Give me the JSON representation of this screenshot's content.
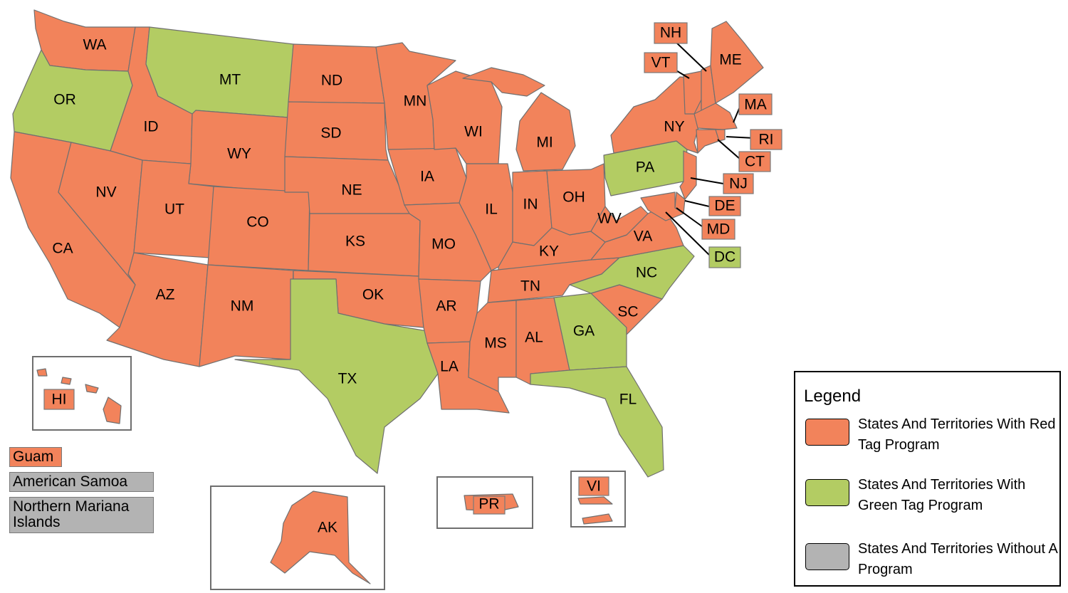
{
  "colors": {
    "red_tag": "#f2835b",
    "green_tag": "#b3cc63",
    "no_program": "#b3b3b3",
    "border": "#707070"
  },
  "states": {
    "WA": {
      "label": "WA",
      "program": "red"
    },
    "OR": {
      "label": "OR",
      "program": "green"
    },
    "CA": {
      "label": "CA",
      "program": "red"
    },
    "ID": {
      "label": "ID",
      "program": "red"
    },
    "NV": {
      "label": "NV",
      "program": "red"
    },
    "MT": {
      "label": "MT",
      "program": "green"
    },
    "WY": {
      "label": "WY",
      "program": "red"
    },
    "UT": {
      "label": "UT",
      "program": "red"
    },
    "CO": {
      "label": "CO",
      "program": "red"
    },
    "AZ": {
      "label": "AZ",
      "program": "red"
    },
    "NM": {
      "label": "NM",
      "program": "red"
    },
    "ND": {
      "label": "ND",
      "program": "red"
    },
    "SD": {
      "label": "SD",
      "program": "red"
    },
    "NE": {
      "label": "NE",
      "program": "red"
    },
    "KS": {
      "label": "KS",
      "program": "red"
    },
    "OK": {
      "label": "OK",
      "program": "red"
    },
    "TX": {
      "label": "TX",
      "program": "green"
    },
    "MN": {
      "label": "MN",
      "program": "red"
    },
    "IA": {
      "label": "IA",
      "program": "red"
    },
    "MO": {
      "label": "MO",
      "program": "red"
    },
    "AR": {
      "label": "AR",
      "program": "red"
    },
    "LA": {
      "label": "LA",
      "program": "red"
    },
    "WI": {
      "label": "WI",
      "program": "red"
    },
    "IL": {
      "label": "IL",
      "program": "red"
    },
    "MI": {
      "label": "MI",
      "program": "red"
    },
    "IN": {
      "label": "IN",
      "program": "red"
    },
    "OH": {
      "label": "OH",
      "program": "red"
    },
    "KY": {
      "label": "KY",
      "program": "red"
    },
    "TN": {
      "label": "TN",
      "program": "red"
    },
    "MS": {
      "label": "MS",
      "program": "red"
    },
    "AL": {
      "label": "AL",
      "program": "red"
    },
    "GA": {
      "label": "GA",
      "program": "green"
    },
    "FL": {
      "label": "FL",
      "program": "green"
    },
    "SC": {
      "label": "SC",
      "program": "red"
    },
    "NC": {
      "label": "NC",
      "program": "green"
    },
    "VA": {
      "label": "VA",
      "program": "red"
    },
    "WV": {
      "label": "WV",
      "program": "red"
    },
    "PA": {
      "label": "PA",
      "program": "green"
    },
    "NY": {
      "label": "NY",
      "program": "red"
    },
    "ME": {
      "label": "ME",
      "program": "red"
    },
    "NH": {
      "label": "NH",
      "program": "red"
    },
    "VT": {
      "label": "VT",
      "program": "red"
    },
    "MA": {
      "label": "MA",
      "program": "red"
    },
    "RI": {
      "label": "RI",
      "program": "red"
    },
    "CT": {
      "label": "CT",
      "program": "red"
    },
    "NJ": {
      "label": "NJ",
      "program": "red"
    },
    "DE": {
      "label": "DE",
      "program": "red"
    },
    "MD": {
      "label": "MD",
      "program": "red"
    },
    "DC": {
      "label": "DC",
      "program": "green"
    },
    "HI": {
      "label": "HI",
      "program": "red"
    },
    "AK": {
      "label": "AK",
      "program": "red"
    },
    "PR": {
      "label": "PR",
      "program": "red"
    },
    "VI": {
      "label": "VI",
      "program": "red"
    }
  },
  "territories": {
    "guam": {
      "label": "Guam",
      "program": "red"
    },
    "american_samoa": {
      "label": "American Samoa",
      "program": "none"
    },
    "northern_mariana": {
      "label": "Northern Mariana Islands",
      "program": "none"
    }
  },
  "legend": {
    "title": "Legend",
    "items": [
      {
        "label": "States And Territories With Red Tag Program",
        "color": "#f2835b"
      },
      {
        "label": "States And Territories With Green Tag Program",
        "color": "#b3cc63"
      },
      {
        "label": "States And Territories Without A Program",
        "color": "#b3b3b3"
      }
    ]
  }
}
